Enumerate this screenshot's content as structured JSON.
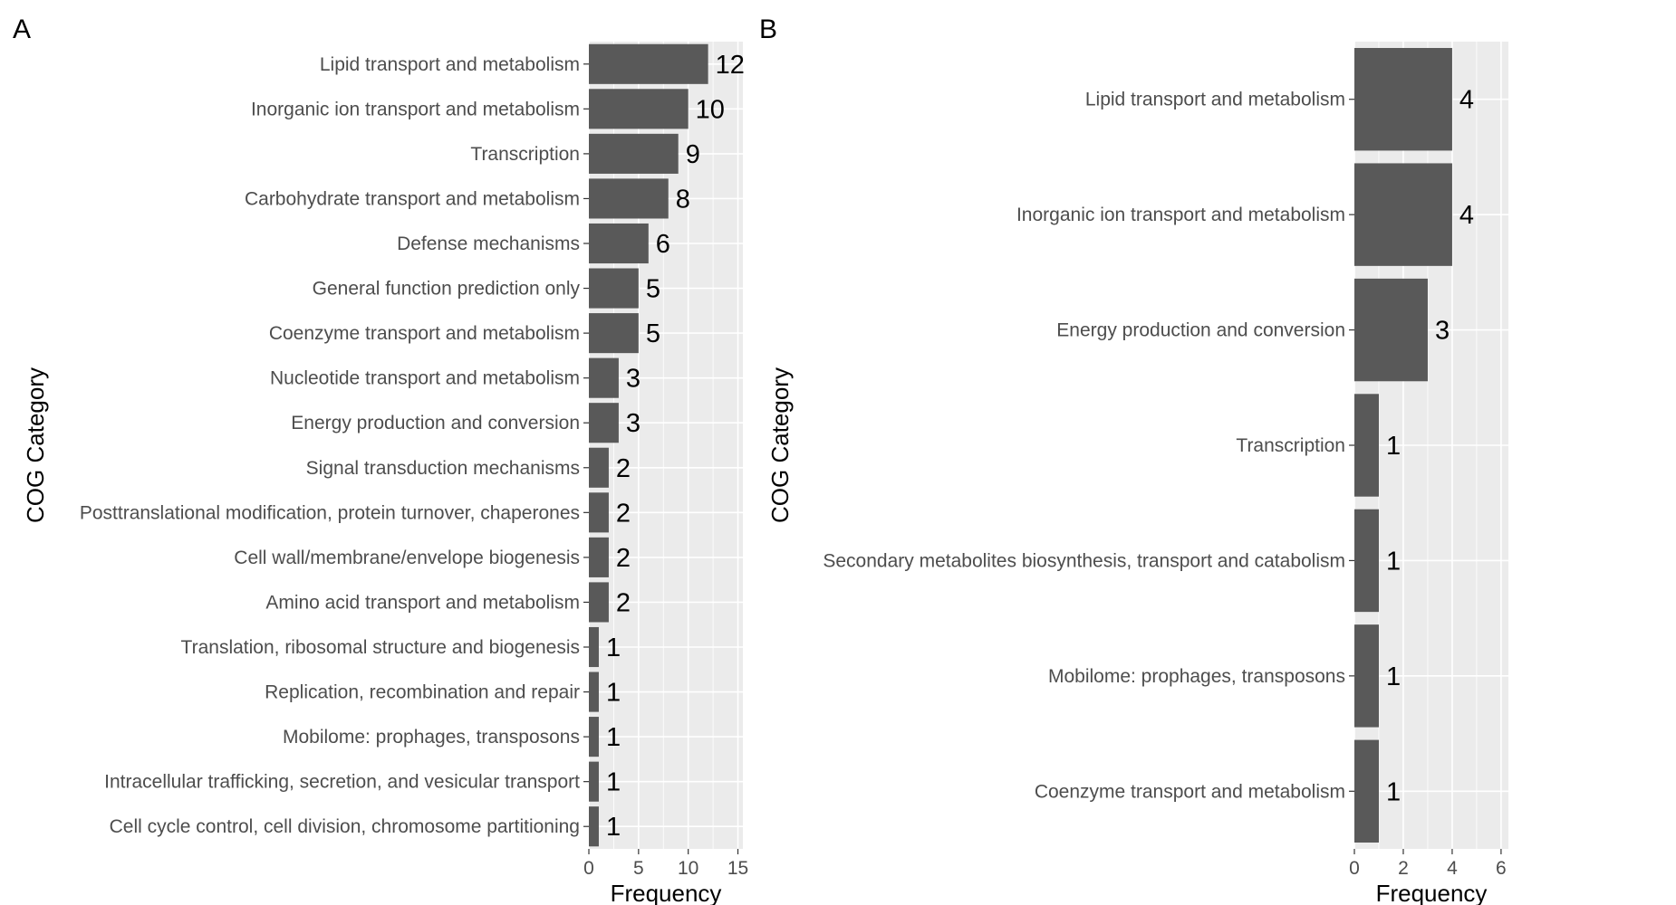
{
  "chart_data": [
    {
      "panel": "A",
      "type": "bar",
      "orientation": "horizontal",
      "ylabel": "COG Category",
      "xlabel": "Frequency",
      "xlim": [
        0,
        15.5
      ],
      "xticks": [
        0,
        5,
        10,
        15
      ],
      "grid": true,
      "categories": [
        "Lipid transport and metabolism",
        "Inorganic ion transport and metabolism",
        "Transcription",
        "Carbohydrate transport and metabolism",
        "Defense mechanisms",
        "General function prediction only",
        "Coenzyme transport and metabolism",
        "Nucleotide transport and metabolism",
        "Energy production and conversion",
        "Signal transduction mechanisms",
        "Posttranslational modification, protein turnover, chaperones",
        "Cell wall/membrane/envelope biogenesis",
        "Amino acid transport and metabolism",
        "Translation, ribosomal structure and biogenesis",
        "Replication, recombination and repair",
        "Mobilome: prophages, transposons",
        "Intracellular trafficking, secretion, and vesicular transport",
        "Cell cycle control, cell division, chromosome partitioning"
      ],
      "values": [
        12,
        10,
        9,
        8,
        6,
        5,
        5,
        3,
        3,
        2,
        2,
        2,
        2,
        1,
        1,
        1,
        1,
        1
      ]
    },
    {
      "panel": "B",
      "type": "bar",
      "orientation": "horizontal",
      "ylabel": "COG Category",
      "xlabel": "Frequency",
      "xlim": [
        0,
        6.3
      ],
      "xticks": [
        0,
        2,
        4,
        6
      ],
      "grid": true,
      "categories": [
        "Lipid transport and metabolism",
        "Inorganic ion transport and metabolism",
        "Energy production and conversion",
        "Transcription",
        "Secondary metabolites biosynthesis, transport and catabolism",
        "Mobilome: prophages, transposons",
        "Coenzyme transport and metabolism"
      ],
      "values": [
        4,
        4,
        3,
        1,
        1,
        1,
        1
      ]
    }
  ]
}
